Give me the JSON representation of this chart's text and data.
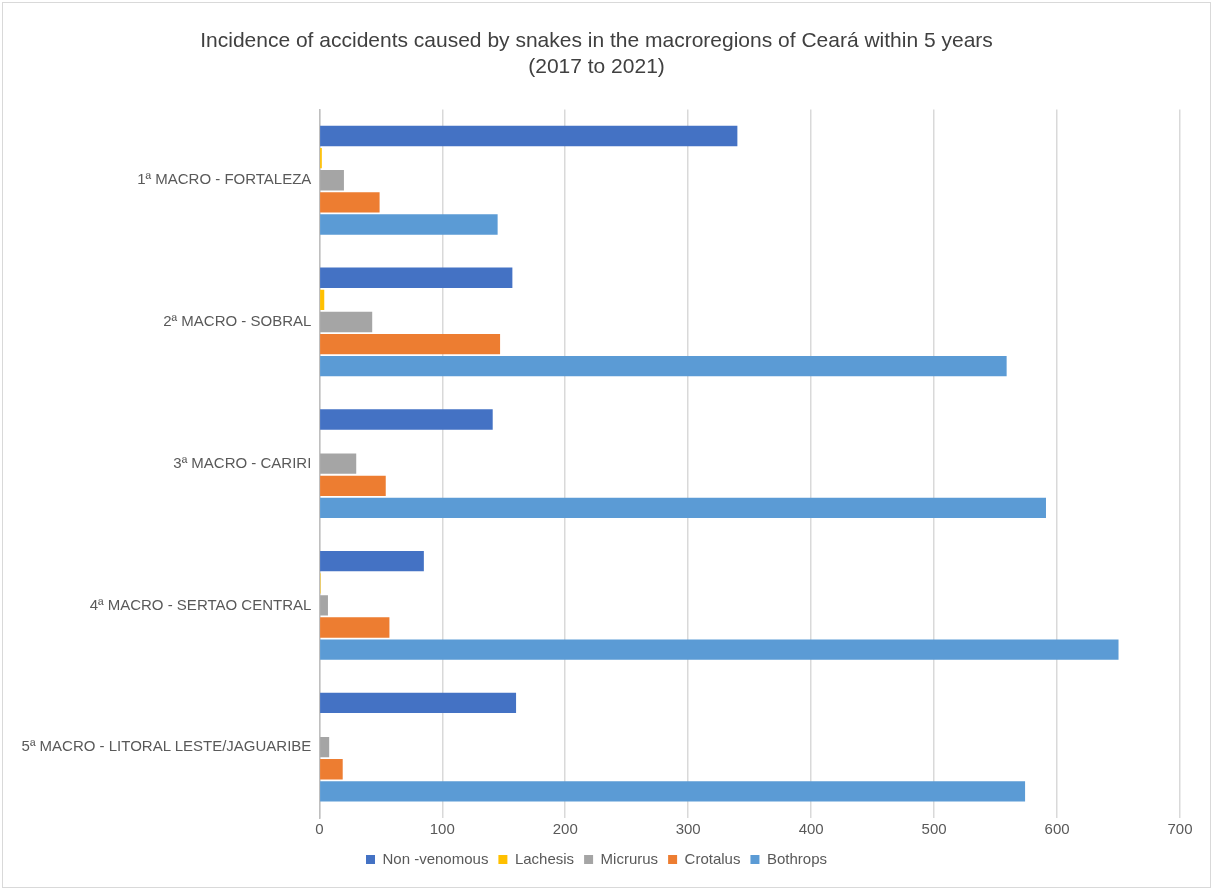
{
  "chart_data": {
    "type": "bar",
    "orientation": "horizontal",
    "title": "Incidence of accidents caused by snakes in the macroregions of Ceará within 5 years\n(2017 to 2021)",
    "categories": [
      "1ª MACRO - FORTALEZA",
      "2ª MACRO - SOBRAL",
      "3ª MACRO - CARIRI",
      "4ª MACRO - SERTAO CENTRAL",
      "5ª MACRO - LITORAL LESTE/JAGUARIBE"
    ],
    "series": [
      {
        "name": "Non -venomous",
        "color": "#4472c4",
        "values": [
          340,
          157,
          141,
          85,
          160
        ]
      },
      {
        "name": "Lachesis",
        "color": "#ffc000",
        "values": [
          2,
          4,
          0,
          1,
          0
        ]
      },
      {
        "name": "Micrurus",
        "color": "#a5a5a5",
        "values": [
          20,
          43,
          30,
          7,
          8
        ]
      },
      {
        "name": "Crotalus",
        "color": "#ed7d31",
        "values": [
          49,
          147,
          54,
          57,
          19
        ]
      },
      {
        "name": "Bothrops",
        "color": "#5b9bd5",
        "values": [
          145,
          559,
          591,
          650,
          574
        ]
      }
    ],
    "xlim": [
      0,
      700
    ],
    "xticks": [
      0,
      100,
      200,
      300,
      400,
      500,
      600,
      700
    ],
    "grid": "x",
    "legend": "bottom"
  }
}
